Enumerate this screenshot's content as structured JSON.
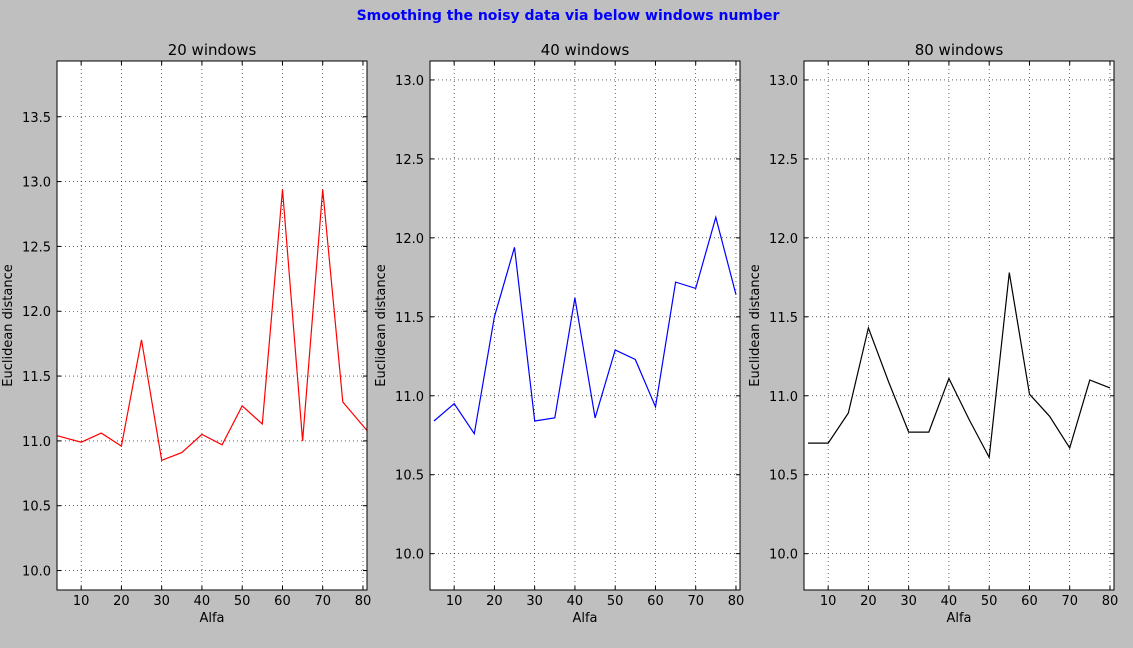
{
  "figure": {
    "suptitle": "Smoothing the noisy data via below windows number",
    "suptitle_color": "#0000ff",
    "background": "#bfbfbf"
  },
  "chart_data": [
    {
      "type": "line",
      "title": "20 windows",
      "xlabel": "Alfa",
      "ylabel": "Euclidean distance",
      "color": "#ff0000",
      "grid": true,
      "xlim": [
        4,
        81
      ],
      "ylim": [
        9.85,
        13.93
      ],
      "xticks": [
        10,
        20,
        30,
        40,
        50,
        60,
        70,
        80
      ],
      "yticks": [
        10.0,
        10.5,
        11.0,
        11.5,
        12.0,
        12.5,
        13.0,
        13.5
      ],
      "x": [
        4,
        10,
        15,
        20,
        25,
        30,
        35,
        40,
        45,
        50,
        55,
        60,
        65,
        70,
        75,
        81
      ],
      "values": [
        11.04,
        10.99,
        11.06,
        10.96,
        11.78,
        10.85,
        10.91,
        11.05,
        10.97,
        11.27,
        11.13,
        12.94,
        11.0,
        12.94,
        11.3,
        11.08
      ]
    },
    {
      "type": "line",
      "title": "40 windows",
      "xlabel": "Alfa",
      "ylabel": "Euclidean distance",
      "color": "#0000ff",
      "grid": true,
      "xlim": [
        4,
        81
      ],
      "ylim": [
        9.77,
        13.12
      ],
      "xticks": [
        10,
        20,
        30,
        40,
        50,
        60,
        70,
        80
      ],
      "yticks": [
        10.0,
        10.5,
        11.0,
        11.5,
        12.0,
        12.5,
        13.0
      ],
      "x": [
        5,
        10,
        15,
        20,
        25,
        30,
        35,
        40,
        45,
        50,
        55,
        60,
        65,
        70,
        75,
        80
      ],
      "values": [
        10.84,
        10.95,
        10.76,
        11.5,
        11.94,
        10.84,
        10.86,
        11.62,
        10.86,
        11.29,
        11.23,
        10.93,
        11.72,
        11.68,
        12.13,
        11.64
      ]
    },
    {
      "type": "line",
      "title": "80 windows",
      "xlabel": "Alfa",
      "ylabel": "Euclidean distance",
      "color": "#000000",
      "grid": true,
      "xlim": [
        4,
        81
      ],
      "ylim": [
        9.77,
        13.12
      ],
      "xticks": [
        10,
        20,
        30,
        40,
        50,
        60,
        70,
        80
      ],
      "yticks": [
        10.0,
        10.5,
        11.0,
        11.5,
        12.0,
        12.5,
        13.0
      ],
      "x": [
        5,
        10,
        15,
        20,
        25,
        30,
        35,
        40,
        45,
        50,
        55,
        60,
        65,
        70,
        75,
        80
      ],
      "values": [
        10.7,
        10.7,
        10.89,
        11.43,
        11.09,
        10.77,
        10.77,
        11.11,
        10.85,
        10.61,
        11.78,
        11.01,
        10.87,
        10.67,
        11.1,
        11.05
      ]
    }
  ]
}
